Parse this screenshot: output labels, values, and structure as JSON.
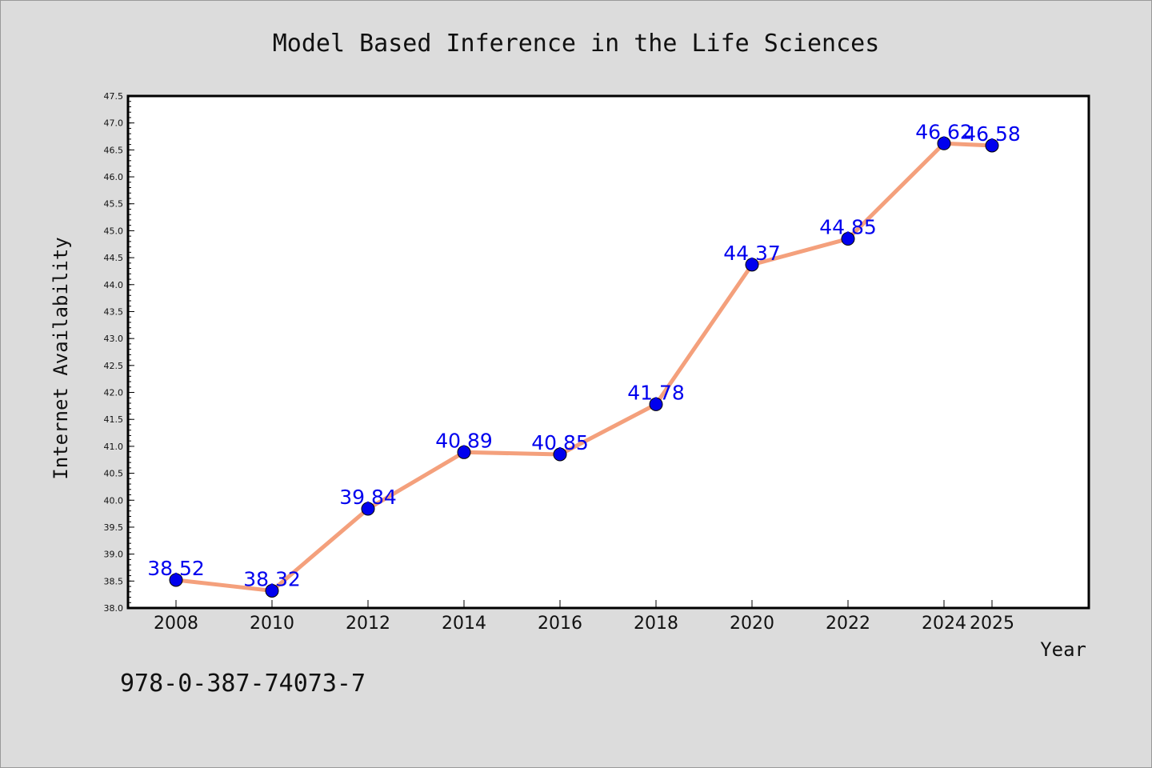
{
  "chart_data": {
    "type": "line",
    "title": "Model Based Inference in the Life Sciences",
    "xlabel": "Year",
    "ylabel": "Internet Availability",
    "categories": [
      "2008",
      "2010",
      "2012",
      "2014",
      "2016",
      "2018",
      "2020",
      "2022",
      "2024",
      "2025"
    ],
    "series": [
      {
        "values": [
          38.52,
          38.32,
          39.84,
          40.89,
          40.85,
          41.78,
          44.37,
          44.85,
          46.62,
          46.58
        ],
        "labels": [
          "38.52",
          "38.32",
          "39.84",
          "40.89",
          "40.85",
          "41.78",
          "44.37",
          "44.85",
          "46.62",
          "46.58"
        ],
        "line_color": "#f4a07c",
        "marker_color": "#0000ee"
      }
    ],
    "ylim": [
      38.0,
      47.5
    ],
    "yticks": [
      "38.0",
      "38.5",
      "39.0",
      "39.5",
      "40.0",
      "40.5",
      "41.0",
      "41.5",
      "42.0",
      "42.5",
      "43.0",
      "43.5",
      "44.0",
      "44.5",
      "45.0",
      "45.5",
      "46.0",
      "46.5",
      "47.0",
      "47.5"
    ],
    "grid": false,
    "legend": "none"
  },
  "footer_text": "978-0-387-74073-7",
  "colors": {
    "background": "#dcdcdc",
    "plot_background": "#ffffff",
    "data_label": "#0000ee"
  }
}
